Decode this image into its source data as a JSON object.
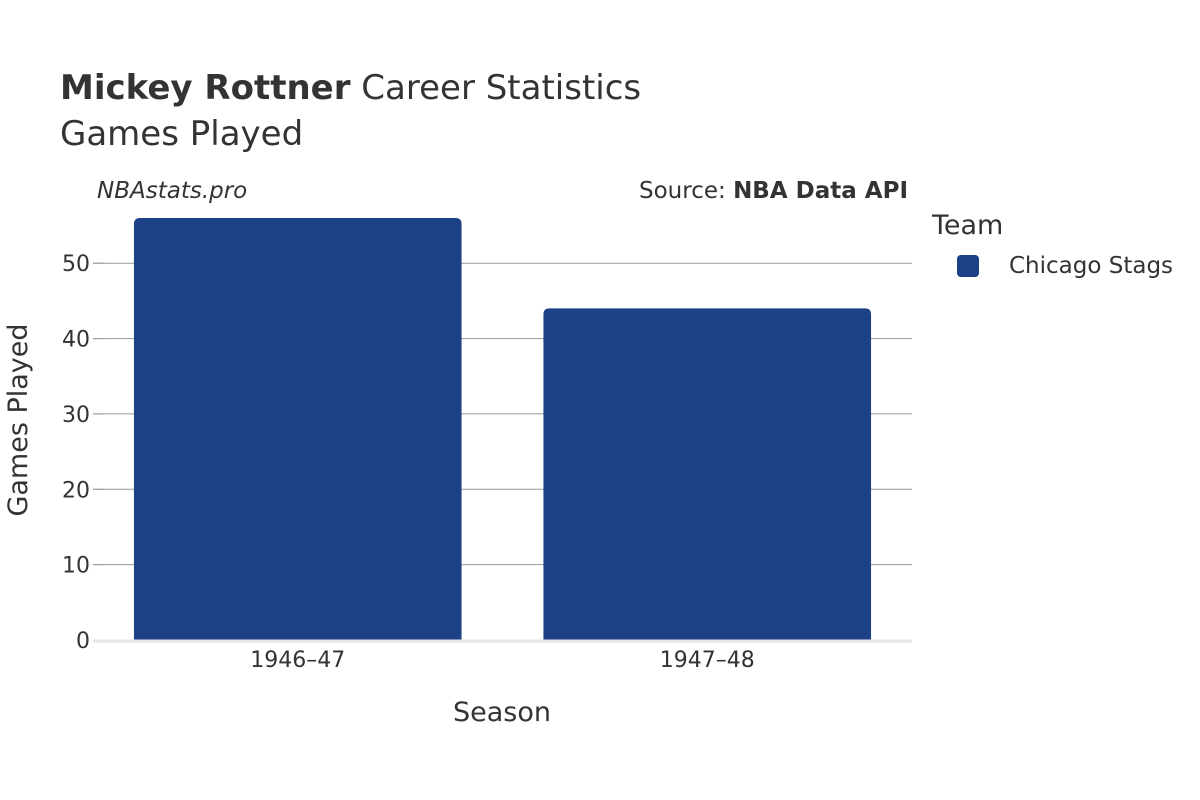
{
  "header": {
    "title_bold": "Mickey Rottner",
    "title_rest": "Career Statistics",
    "subtitle": "Games Played"
  },
  "watermark": "NBAstats.pro",
  "source": {
    "prefix": "Source:",
    "name": "NBA Data API"
  },
  "legend": {
    "title": "Team",
    "items": [
      {
        "label": "Chicago Stags",
        "color": "#1c4187"
      }
    ]
  },
  "chart_data": {
    "type": "bar",
    "categories": [
      "1946–47",
      "1947–48"
    ],
    "series": [
      {
        "name": "Chicago Stags",
        "values": [
          56,
          44
        ],
        "color": "#1c4187"
      }
    ],
    "xlabel": "Season",
    "ylabel": "Games Played",
    "ylim": [
      0,
      56
    ],
    "yticks": [
      0,
      10,
      20,
      30,
      40,
      50
    ],
    "grid": true,
    "legend_position": "right"
  }
}
